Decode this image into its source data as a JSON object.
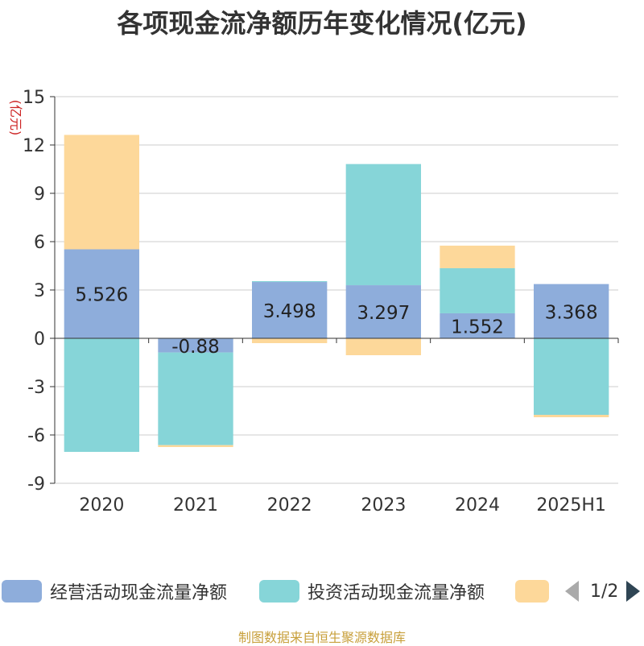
{
  "title": "各项现金流净额历年变化情况(亿元)",
  "source": "制图数据来自恒生聚源数据库",
  "legend": {
    "items": [
      {
        "label": "经营活动现金流量净额",
        "color": "#8eaddb"
      },
      {
        "label": "投资活动现金流量净额",
        "color": "#86d5d8"
      },
      {
        "label": "",
        "color": "#fdd89a"
      }
    ],
    "page": "1/2"
  },
  "chart_data": {
    "type": "bar",
    "stacked": true,
    "categories": [
      "2020",
      "2021",
      "2022",
      "2023",
      "2024",
      "2025H1"
    ],
    "ylabel": "(亿元)",
    "ylim": [
      -9,
      15
    ],
    "yticks": [
      15,
      12,
      9,
      6,
      3,
      0,
      -3,
      -6,
      -9
    ],
    "grid": true,
    "series": [
      {
        "name": "经营活动现金流量净额",
        "color": "#8eaddb",
        "values": [
          5.526,
          -0.88,
          3.498,
          3.297,
          1.552,
          3.368
        ],
        "show_labels": true
      },
      {
        "name": "投资活动现金流量净额",
        "color": "#86d5d8",
        "values": [
          -7.05,
          -5.75,
          0.05,
          7.52,
          2.8,
          -4.75
        ],
        "show_labels": false
      },
      {
        "color": "#fdd89a",
        "values": [
          7.1,
          -0.12,
          -0.3,
          -1.05,
          1.4,
          -0.15
        ],
        "show_labels": false
      }
    ],
    "data_labels": [
      "5.526",
      "-0.88",
      "3.498",
      "3.297",
      "1.552",
      "3.368"
    ]
  }
}
